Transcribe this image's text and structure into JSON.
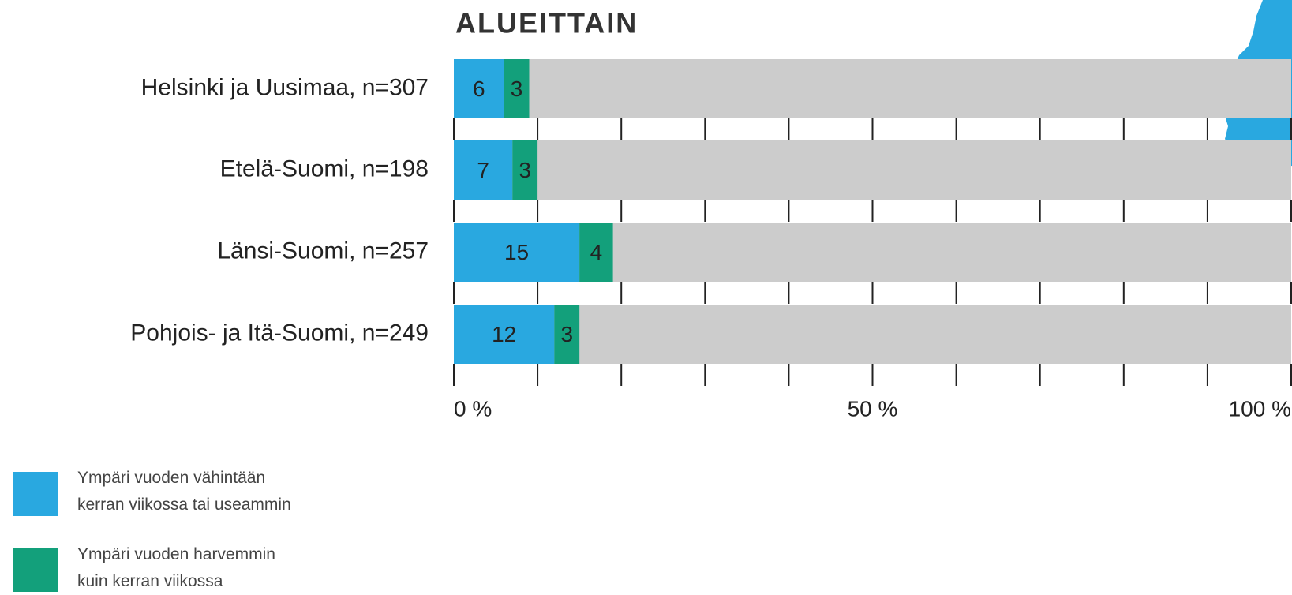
{
  "chart_data": {
    "type": "stacked-barh",
    "title": "ALUEITTAIN",
    "categories": [
      "Helsinki ja Uusimaa, n=307",
      "Etelä-Suomi, n=198",
      "Länsi-Suomi, n=257",
      "Pohjois- ja Itä-Suomi, n=249"
    ],
    "series": [
      {
        "name": "Ympäri vuoden vähintään kerran viikossa tai useammin",
        "color": "#29a8e0",
        "values": [
          6,
          7,
          15,
          12
        ]
      },
      {
        "name": "Ympäri vuoden harvemmin kuin kerran viikossa",
        "color": "#13a07b",
        "values": [
          3,
          3,
          4,
          3
        ]
      }
    ],
    "track_color": "#cccccc",
    "xlim": [
      0,
      100
    ],
    "xticks": [
      {
        "value": 0,
        "label": "0 %"
      },
      {
        "value": 50,
        "label": "50 %"
      },
      {
        "value": 100,
        "label": "100 %"
      }
    ],
    "xminor_ticks": [
      10,
      20,
      30,
      40,
      60,
      70,
      80,
      90
    ]
  }
}
